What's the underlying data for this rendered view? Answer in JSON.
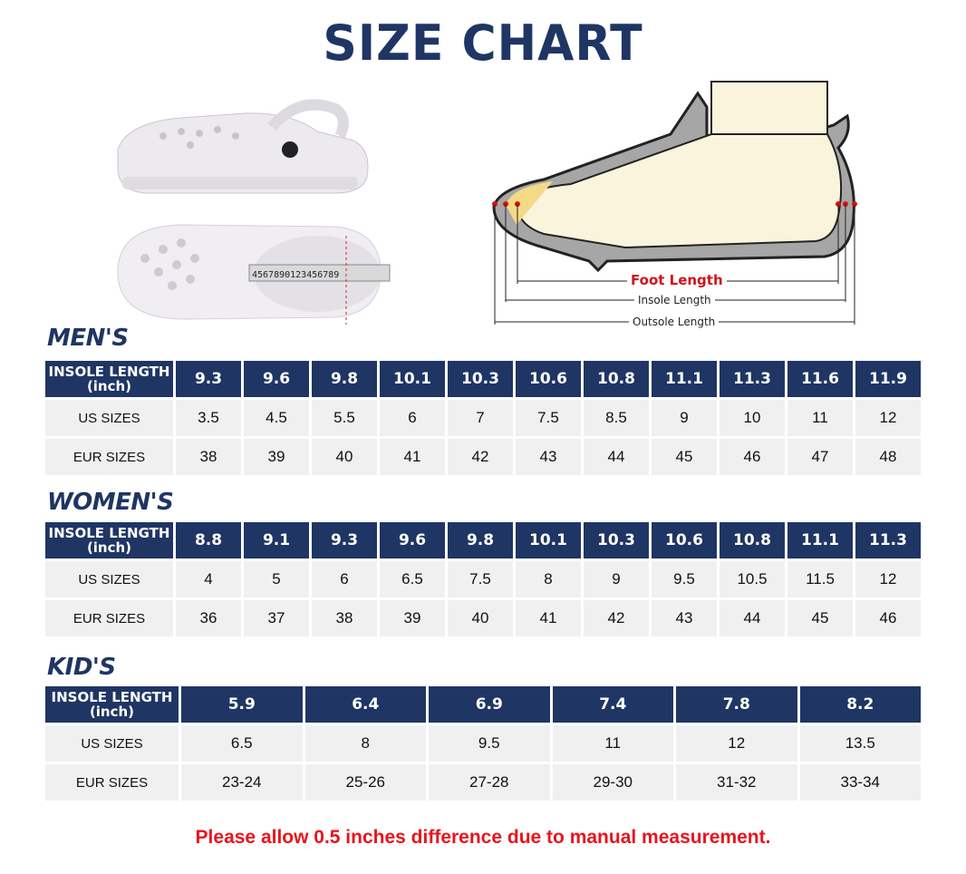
{
  "title": "SIZE CHART",
  "diagram": {
    "foot_length": "Foot Length",
    "insole_length": "Insole Length",
    "outsole_length": "Outsole Length"
  },
  "row_labels": {
    "insole_line1": "INSOLE LENGTH",
    "insole_line2": "(inch)",
    "us": "US SIZES",
    "eur": "EUR SIZES"
  },
  "tables": [
    {
      "heading": "MEN'S",
      "insole": [
        "9.3",
        "9.6",
        "9.8",
        "10.1",
        "10.3",
        "10.6",
        "10.8",
        "11.1",
        "11.3",
        "11.6",
        "11.9"
      ],
      "us": [
        "3.5",
        "4.5",
        "5.5",
        "6",
        "7",
        "7.5",
        "8.5",
        "9",
        "10",
        "11",
        "12"
      ],
      "eur": [
        "38",
        "39",
        "40",
        "41",
        "42",
        "43",
        "44",
        "45",
        "46",
        "47",
        "48"
      ]
    },
    {
      "heading": "WOMEN'S",
      "insole": [
        "8.8",
        "9.1",
        "9.3",
        "9.6",
        "9.8",
        "10.1",
        "10.3",
        "10.6",
        "10.8",
        "11.1",
        "11.3"
      ],
      "us": [
        "4",
        "5",
        "6",
        "6.5",
        "7.5",
        "8",
        "9",
        "9.5",
        "10.5",
        "11.5",
        "12"
      ],
      "eur": [
        "36",
        "37",
        "38",
        "39",
        "40",
        "41",
        "42",
        "43",
        "44",
        "45",
        "46"
      ]
    },
    {
      "heading": "KID'S",
      "insole": [
        "5.9",
        "6.4",
        "6.9",
        "7.4",
        "7.8",
        "8.2"
      ],
      "us": [
        "6.5",
        "8",
        "9.5",
        "11",
        "12",
        "13.5"
      ],
      "eur": [
        "23-24",
        "25-26",
        "27-28",
        "29-30",
        "31-32",
        "33-34"
      ]
    }
  ],
  "note": "Please allow 0.5 inches difference due to manual measurement.",
  "colors": {
    "navy": "#1f3564",
    "red": "#e8141c",
    "cell": "#f0f0f0"
  }
}
